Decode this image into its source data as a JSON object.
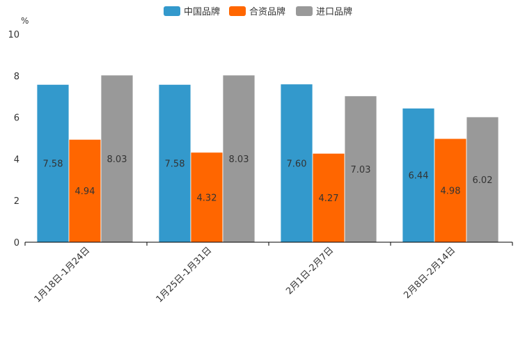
{
  "chart_data": {
    "type": "bar",
    "title": "",
    "xlabel": "",
    "ylabel": "%",
    "ylim": [
      0,
      10
    ],
    "yticks": [
      0,
      2,
      4,
      6,
      8,
      10
    ],
    "grid": false,
    "legend_position": "top-center",
    "categories": [
      "1月18日-1月24日",
      "1月25日-1月31日",
      "2月1日-2月7日",
      "2月8日-2月14日"
    ],
    "series": [
      {
        "name": "中国品牌",
        "color": "#3399cc",
        "values": [
          7.58,
          7.58,
          7.6,
          6.44
        ],
        "labels": [
          "7.58",
          "7.58",
          "7.60",
          "6.44"
        ]
      },
      {
        "name": "合资品牌",
        "color": "#ff6600",
        "values": [
          4.94,
          4.32,
          4.27,
          4.98
        ],
        "labels": [
          "4.94",
          "4.32",
          "4.27",
          "4.98"
        ]
      },
      {
        "name": "进口品牌",
        "color": "#999999",
        "values": [
          8.03,
          8.03,
          7.03,
          6.02
        ],
        "labels": [
          "8.03",
          "8.03",
          "7.03",
          "6.02"
        ]
      }
    ]
  }
}
